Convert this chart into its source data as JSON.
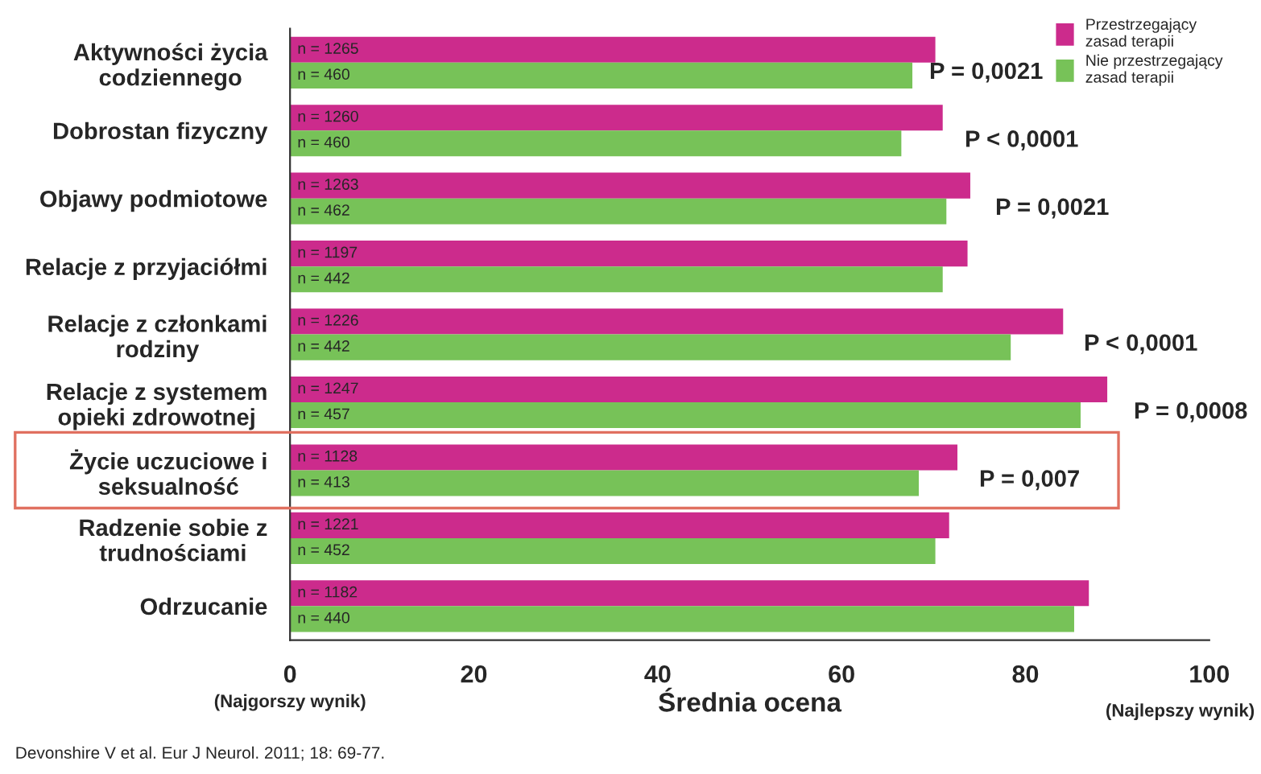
{
  "chart_data": {
    "type": "bar",
    "orientation": "horizontal",
    "xlabel": "Średnia ocena",
    "categories": [
      "Aktywności życia\ncodziennego",
      "Dobrostan fizyczny",
      "Objawy podmiotowe",
      "Relacje z przyjaciółmi",
      "Relacje z członkami\nrodziny",
      "Relacje z systemem\nopieki zdrowotnej",
      "Życie uczuciowe i\nseksualność",
      "Radzenie sobie z\ntrudnościami",
      "Odrzucanie"
    ],
    "series": [
      {
        "name": "Przestrzegający\nzasad terapii",
        "color": "#cc2b8c",
        "values": [
          70.2,
          71.0,
          74.0,
          73.7,
          84.1,
          88.9,
          72.6,
          71.7,
          86.9
        ]
      },
      {
        "name": "Nie przestrzegający\nzasad terapii",
        "color": "#77c258",
        "values": [
          67.7,
          66.5,
          71.4,
          71.0,
          78.4,
          86.0,
          68.4,
          70.2,
          85.3
        ]
      }
    ],
    "xlim": [
      0,
      100
    ],
    "xticks": [
      0,
      20,
      40,
      60,
      80,
      100
    ],
    "legend": "top right",
    "annotations": [
      "n = 1265",
      "n = 460",
      "n = 1260",
      "n = 460",
      "n = 1263",
      "n = 462",
      "n = 1197",
      "n = 442",
      "n = 1226",
      "n = 442",
      "n = 1247",
      "n = 457",
      "n = 1128",
      "n = 413",
      "n = 1221",
      "n = 452",
      "n = 1182",
      "n = 440",
      "P = 0,0021",
      "P < 0,0001",
      "P = 0,0021",
      "P < 0,0001",
      "P = 0,0008",
      "P = 0,007",
      "(Najgorszy wynik)",
      "(Najlepszy wynik)",
      "Devonshire V et al. Eur J Neurol. 2011; 18: 69-77."
    ]
  }
}
